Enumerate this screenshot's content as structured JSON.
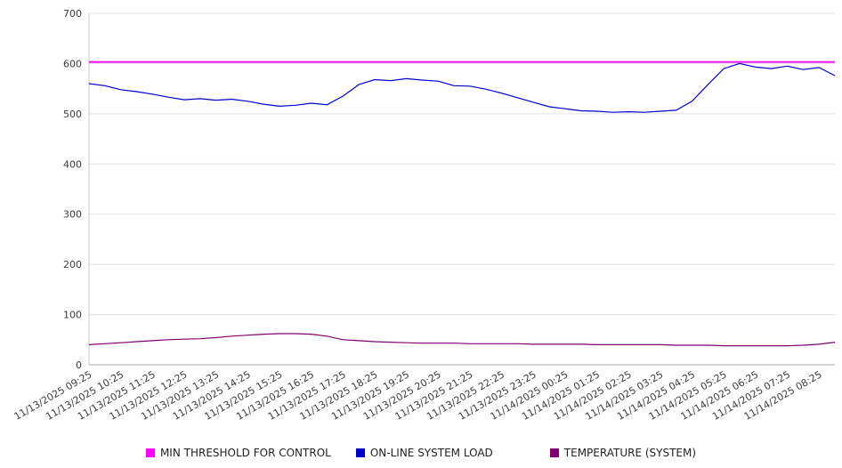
{
  "chart_data": {
    "type": "line",
    "title": "",
    "xlabel": "",
    "ylabel": "",
    "ylim": [
      0,
      700
    ],
    "y_ticks": [
      0,
      100,
      200,
      300,
      400,
      500,
      600,
      700
    ],
    "grid": "horizontal",
    "legend_position": "bottom",
    "points_per_tick": 2,
    "x_tick_labels": [
      "11/13/2025 09:25",
      "11/13/2025 10:25",
      "11/13/2025 11:25",
      "11/13/2025 12:25",
      "11/13/2025 13:25",
      "11/13/2025 14:25",
      "11/13/2025 15:25",
      "11/13/2025 16:25",
      "11/13/2025 17:25",
      "11/13/2025 18:25",
      "11/13/2025 19:25",
      "11/13/2025 20:25",
      "11/13/2025 21:25",
      "11/13/2025 22:25",
      "11/13/2025 23:25",
      "11/14/2025 00:25",
      "11/14/2025 01:25",
      "11/14/2025 02:25",
      "11/14/2025 03:25",
      "11/14/2025 04:25",
      "11/14/2025 05:25",
      "11/14/2025 06:25",
      "11/14/2025 07:25",
      "11/14/2025 08:25"
    ],
    "series": [
      {
        "name": "MIN THRESHOLD FOR CONTROL",
        "color": "#ff00ff",
        "values": [
          603,
          603
        ]
      },
      {
        "name": "ON-LINE SYSTEM LOAD",
        "color": "#0000cd",
        "values": [
          560,
          556,
          548,
          544,
          539,
          533,
          528,
          530,
          527,
          529,
          525,
          519,
          515,
          517,
          521,
          518,
          535,
          558,
          568,
          566,
          570,
          567,
          565,
          556,
          555,
          549,
          541,
          532,
          523,
          514,
          510,
          506,
          505,
          503,
          504,
          503,
          505,
          507,
          525,
          558,
          590,
          600,
          593,
          590,
          595,
          588,
          592,
          576
        ]
      },
      {
        "name": "TEMPERATURE (SYSTEM)",
        "color": "#800070",
        "values": [
          40,
          42,
          44,
          46,
          48,
          50,
          51,
          52,
          54,
          57,
          59,
          61,
          62,
          62,
          61,
          57,
          50,
          48,
          46,
          45,
          44,
          43,
          43,
          43,
          42,
          42,
          42,
          42,
          41,
          41,
          41,
          41,
          40,
          40,
          40,
          40,
          40,
          39,
          39,
          39,
          38,
          38,
          38,
          38,
          38,
          39,
          41,
          45
        ]
      }
    ]
  }
}
